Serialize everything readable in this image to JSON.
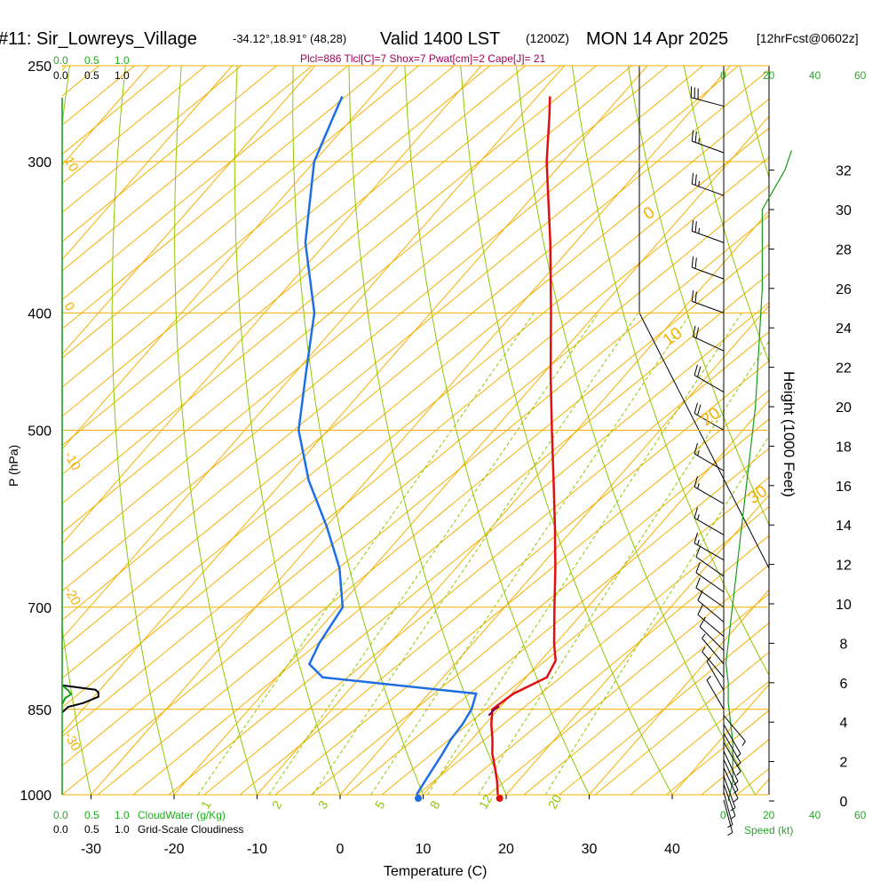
{
  "header": {
    "station": "#11: Sir_Lowreys_Village",
    "coords": "-34.12°,18.91° (48,28)",
    "valid": "Valid 1400 LST",
    "zulu": "(1200Z)",
    "date": "MON 14 Apr 2025",
    "fcst": "[12hrFcst@0602z]",
    "params": "Plcl=886 Tlcl[C]=7 Shox=7 Pwat[cm]=2 Cape[J]= 21"
  },
  "legend": {
    "cloud_scale": [
      "0.0",
      "0.5",
      "1.0"
    ],
    "cloudwater_label": "CloudWater (g/Kg)",
    "cloudiness_label": "Grid-Scale Cloudiness",
    "speed_label": "Speed (kt)",
    "speed_ticks": [
      "0",
      "20",
      "40",
      "60"
    ]
  },
  "colors": {
    "isotherm": "#f5b000",
    "dry_adiabat": "#8cc800",
    "mixing_ratio": "#8cc800",
    "temperature": "#e11010",
    "dewpoint": "#1e6ee6",
    "parcel": "#7a0050",
    "speed": "#1a9a1a",
    "params": "#a0005a",
    "green_label": "#22aa22"
  },
  "chart_data": {
    "type": "skew-t",
    "xlabel": "Temperature (C)",
    "ylabel": "P (hPa)",
    "y2label": "Height (1000 Feet)",
    "pressure_ticks": [
      250,
      300,
      400,
      500,
      700,
      850,
      1000
    ],
    "temp_ticks": [
      -30,
      -20,
      -10,
      0,
      10,
      20,
      30,
      40
    ],
    "height_ticks": [
      0,
      2,
      4,
      6,
      8,
      10,
      12,
      14,
      16,
      18,
      20,
      22,
      24,
      26,
      28,
      30,
      32
    ],
    "isotherm_labels": [
      "-30",
      "-20",
      "-10",
      "0",
      "10",
      "20",
      "30"
    ],
    "dry_adiabat_labels": [
      "10",
      "0",
      "-10",
      "-20",
      "-30"
    ],
    "mixing_ratio_labels": [
      "1",
      "2",
      "3",
      "5",
      "8",
      "12",
      "20"
    ],
    "temperature": [
      {
        "p": 1000,
        "t": 19.0
      },
      {
        "p": 975,
        "t": 17.5
      },
      {
        "p": 950,
        "t": 15.8
      },
      {
        "p": 925,
        "t": 14.0
      },
      {
        "p": 900,
        "t": 12.5
      },
      {
        "p": 875,
        "t": 10.8
      },
      {
        "p": 850,
        "t": 9.3
      },
      {
        "p": 825,
        "t": 10.2
      },
      {
        "p": 800,
        "t": 12.5
      },
      {
        "p": 775,
        "t": 11.8
      },
      {
        "p": 750,
        "t": 9.8
      },
      {
        "p": 700,
        "t": 6.0
      },
      {
        "p": 650,
        "t": 2.0
      },
      {
        "p": 600,
        "t": -2.5
      },
      {
        "p": 550,
        "t": -7.5
      },
      {
        "p": 500,
        "t": -13.0
      },
      {
        "p": 450,
        "t": -19.0
      },
      {
        "p": 400,
        "t": -25.5
      },
      {
        "p": 350,
        "t": -33.0
      },
      {
        "p": 300,
        "t": -42.0
      },
      {
        "p": 275,
        "t": -46.5
      },
      {
        "p": 265,
        "t": -48.5
      }
    ],
    "dewpoint": [
      {
        "p": 1000,
        "t": 9.2
      },
      {
        "p": 975,
        "t": 8.8
      },
      {
        "p": 950,
        "t": 8.4
      },
      {
        "p": 925,
        "t": 8.0
      },
      {
        "p": 900,
        "t": 7.5
      },
      {
        "p": 875,
        "t": 7.3
      },
      {
        "p": 850,
        "t": 6.8
      },
      {
        "p": 825,
        "t": 5.7
      },
      {
        "p": 800,
        "t": -14.5
      },
      {
        "p": 780,
        "t": -17.5
      },
      {
        "p": 750,
        "t": -18.5
      },
      {
        "p": 700,
        "t": -19.5
      },
      {
        "p": 650,
        "t": -24.0
      },
      {
        "p": 600,
        "t": -30.0
      },
      {
        "p": 550,
        "t": -37.0
      },
      {
        "p": 500,
        "t": -43.5
      },
      {
        "p": 450,
        "t": -48.5
      },
      {
        "p": 400,
        "t": -54.0
      },
      {
        "p": 350,
        "t": -62.5
      },
      {
        "p": 300,
        "t": -70.0
      },
      {
        "p": 270,
        "t": -73.0
      },
      {
        "p": 265,
        "t": -73.5
      }
    ],
    "surface_points": {
      "temperature": {
        "p": 1000,
        "t": 19.0
      },
      "dewpoint": {
        "p": 1000,
        "t": 9.2
      }
    },
    "speed_profile_kt": [
      {
        "h": 0,
        "v": 2
      },
      {
        "h": 0.5,
        "v": 3
      },
      {
        "h": 1,
        "v": 4
      },
      {
        "h": 2,
        "v": 4
      },
      {
        "h": 3,
        "v": 4
      },
      {
        "h": 4,
        "v": 3
      },
      {
        "h": 5,
        "v": 2
      },
      {
        "h": 6,
        "v": 2
      },
      {
        "h": 7,
        "v": 1
      },
      {
        "h": 8,
        "v": 2
      },
      {
        "h": 9,
        "v": 3
      },
      {
        "h": 10,
        "v": 4
      },
      {
        "h": 11,
        "v": 5
      },
      {
        "h": 12,
        "v": 6
      },
      {
        "h": 14,
        "v": 8
      },
      {
        "h": 16,
        "v": 10
      },
      {
        "h": 18,
        "v": 12
      },
      {
        "h": 20,
        "v": 14
      },
      {
        "h": 22,
        "v": 15
      },
      {
        "h": 24,
        "v": 16
      },
      {
        "h": 26,
        "v": 17
      },
      {
        "h": 28,
        "v": 17
      },
      {
        "h": 30,
        "v": 17
      },
      {
        "h": 31,
        "v": 22
      },
      {
        "h": 32,
        "v": 27
      },
      {
        "h": 33,
        "v": 30
      }
    ],
    "wind_barbs": [
      {
        "p": 270,
        "dir": 285,
        "spd": 30
      },
      {
        "p": 295,
        "dir": 290,
        "spd": 25
      },
      {
        "p": 320,
        "dir": 290,
        "spd": 25
      },
      {
        "p": 350,
        "dir": 290,
        "spd": 25
      },
      {
        "p": 375,
        "dir": 290,
        "spd": 20
      },
      {
        "p": 400,
        "dir": 290,
        "spd": 20
      },
      {
        "p": 430,
        "dir": 295,
        "spd": 20
      },
      {
        "p": 465,
        "dir": 300,
        "spd": 20
      },
      {
        "p": 500,
        "dir": 300,
        "spd": 20
      },
      {
        "p": 540,
        "dir": 300,
        "spd": 15
      },
      {
        "p": 575,
        "dir": 300,
        "spd": 15
      },
      {
        "p": 610,
        "dir": 300,
        "spd": 15
      },
      {
        "p": 640,
        "dir": 300,
        "spd": 15
      },
      {
        "p": 660,
        "dir": 305,
        "spd": 10
      },
      {
        "p": 680,
        "dir": 305,
        "spd": 10
      },
      {
        "p": 700,
        "dir": 305,
        "spd": 10
      },
      {
        "p": 720,
        "dir": 310,
        "spd": 10
      },
      {
        "p": 740,
        "dir": 310,
        "spd": 10
      },
      {
        "p": 760,
        "dir": 315,
        "spd": 10
      },
      {
        "p": 780,
        "dir": 320,
        "spd": 5
      },
      {
        "p": 800,
        "dir": 320,
        "spd": 5
      },
      {
        "p": 820,
        "dir": 330,
        "spd": 5
      },
      {
        "p": 850,
        "dir": 330,
        "spd": 5
      },
      {
        "p": 860,
        "dir": 140,
        "spd": 5
      },
      {
        "p": 875,
        "dir": 150,
        "spd": 5
      },
      {
        "p": 890,
        "dir": 150,
        "spd": 5
      },
      {
        "p": 905,
        "dir": 150,
        "spd": 5
      },
      {
        "p": 920,
        "dir": 155,
        "spd": 5
      },
      {
        "p": 935,
        "dir": 155,
        "spd": 5
      },
      {
        "p": 950,
        "dir": 155,
        "spd": 5
      },
      {
        "p": 965,
        "dir": 160,
        "spd": 5
      },
      {
        "p": 980,
        "dir": 160,
        "spd": 5
      },
      {
        "p": 995,
        "dir": 165,
        "spd": 5
      },
      {
        "p": 1010,
        "dir": 165,
        "spd": 5
      }
    ],
    "cloudiness_profile": [
      {
        "p": 812,
        "c": 0.0
      },
      {
        "p": 819,
        "c": 0.55
      },
      {
        "p": 823,
        "c": 0.6
      },
      {
        "p": 830,
        "c": 0.6
      },
      {
        "p": 840,
        "c": 0.35
      },
      {
        "p": 846,
        "c": 0.1
      },
      {
        "p": 855,
        "c": 0.0
      }
    ],
    "cloudwater_profile": [
      {
        "p": 812,
        "c": 0.0
      },
      {
        "p": 820,
        "c": 0.1
      },
      {
        "p": 826,
        "c": 0.15
      },
      {
        "p": 832,
        "c": 0.05
      },
      {
        "p": 842,
        "c": 0.0
      }
    ],
    "parcel_trace": [
      {
        "p": 860,
        "t": 9.5
      },
      {
        "p": 850,
        "t": 9.6
      },
      {
        "p": 845,
        "t": 9.8
      }
    ],
    "grid": true
  }
}
